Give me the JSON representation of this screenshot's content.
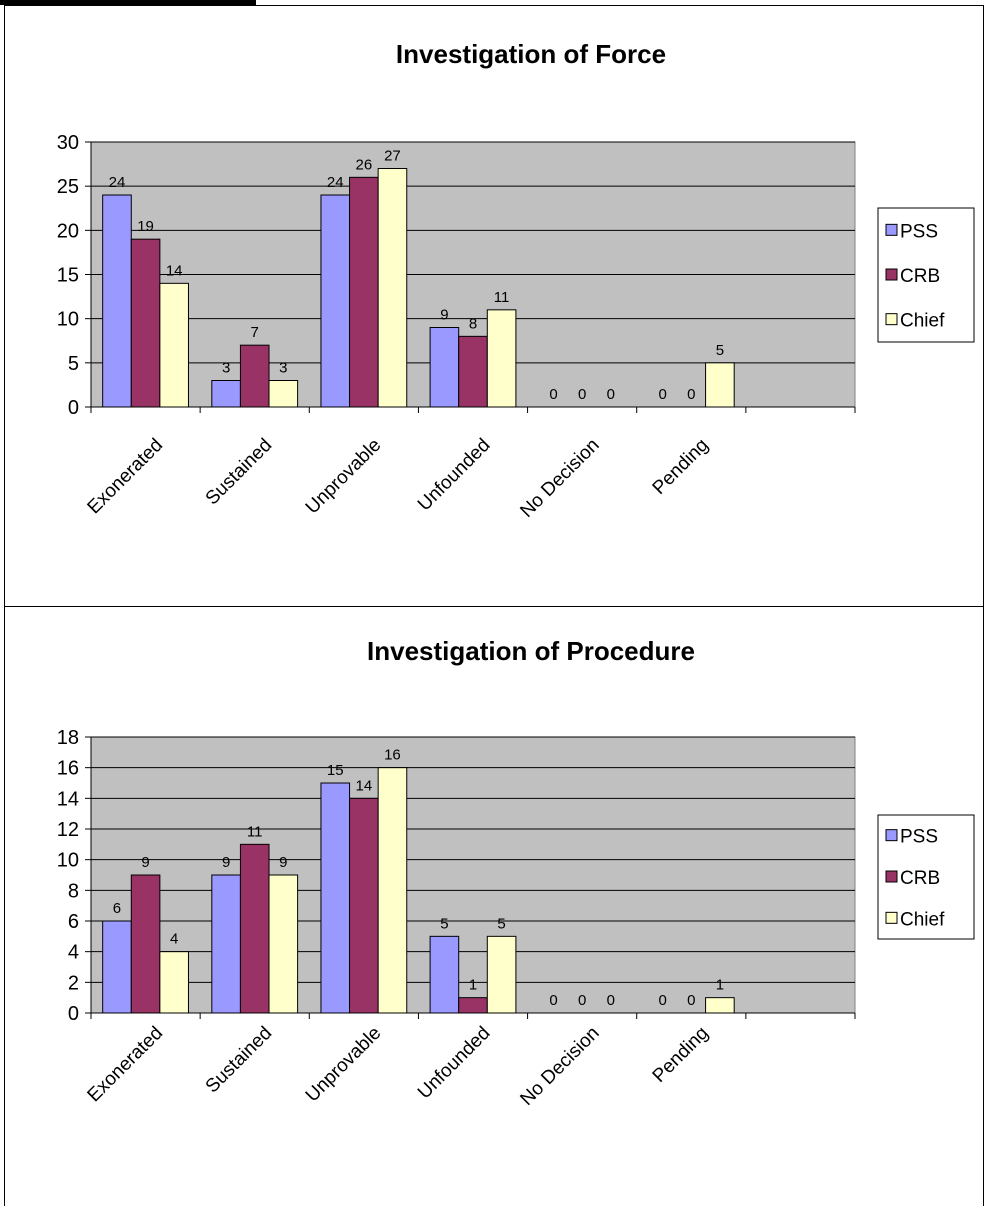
{
  "chart_data": [
    {
      "type": "bar",
      "title": "Investigation of Force",
      "categories": [
        "Exonerated",
        "Sustained",
        "Unprovable",
        "Unfounded",
        "No Decision",
        "Pending"
      ],
      "series": [
        {
          "name": "PSS",
          "color": "#9999ff",
          "values": [
            24,
            3,
            24,
            9,
            0,
            0
          ]
        },
        {
          "name": "CRB",
          "color": "#993366",
          "values": [
            19,
            7,
            26,
            8,
            0,
            0
          ]
        },
        {
          "name": "Chief",
          "color": "#ffffcc",
          "values": [
            14,
            3,
            27,
            11,
            0,
            5
          ]
        }
      ],
      "ylim": [
        0,
        30
      ],
      "yticks": [
        0,
        5,
        10,
        15,
        20,
        25,
        30
      ],
      "grid": true,
      "plot_background": "#c0c0c0",
      "legend_position": "right"
    },
    {
      "type": "bar",
      "title": "Investigation of Procedure",
      "categories": [
        "Exonerated",
        "Sustained",
        "Unprovable",
        "Unfounded",
        "No Decision",
        "Pending"
      ],
      "series": [
        {
          "name": "PSS",
          "color": "#9999ff",
          "values": [
            6,
            9,
            15,
            5,
            0,
            0
          ]
        },
        {
          "name": "CRB",
          "color": "#993366",
          "values": [
            9,
            11,
            14,
            1,
            0,
            0
          ]
        },
        {
          "name": "Chief",
          "color": "#ffffcc",
          "values": [
            4,
            9,
            16,
            5,
            0,
            1
          ]
        }
      ],
      "ylim": [
        0,
        18
      ],
      "yticks": [
        0,
        2,
        4,
        6,
        8,
        10,
        12,
        14,
        16,
        18
      ],
      "grid": true,
      "plot_background": "#c0c0c0",
      "legend_position": "right"
    }
  ]
}
